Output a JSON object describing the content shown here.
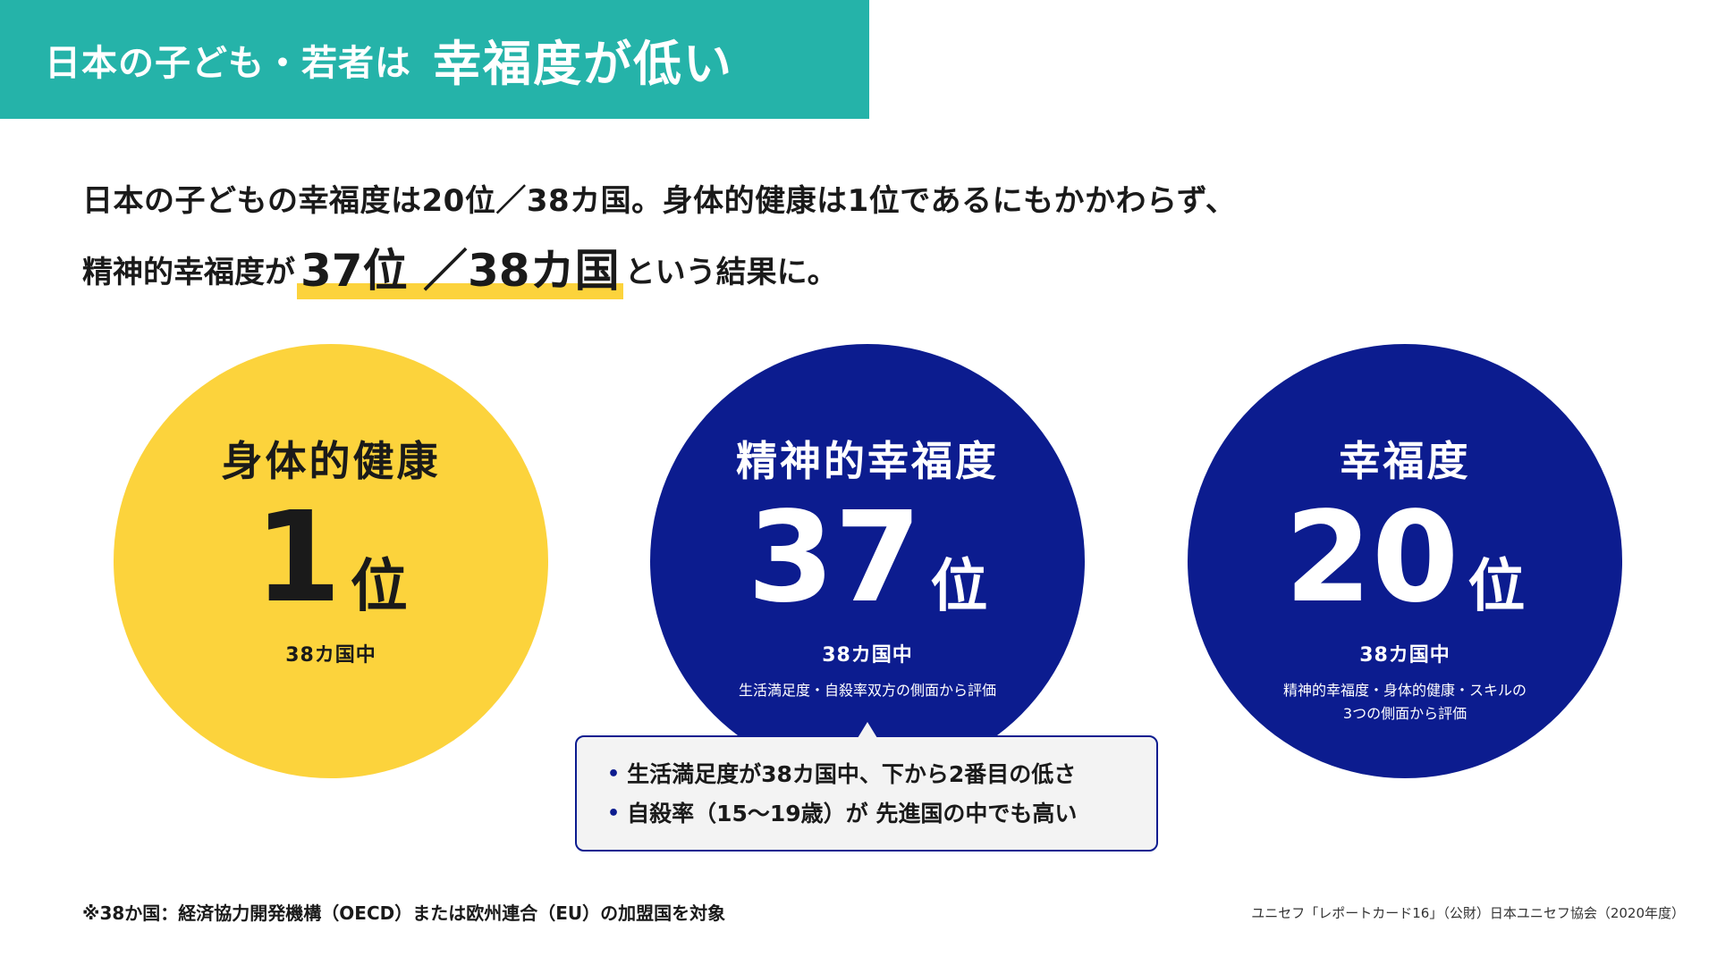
{
  "title": {
    "part1": "日本の子ども・若者は",
    "part2": "幸福度が低い"
  },
  "intro": {
    "line1": "日本の子どもの幸福度は20位／38カ国。身体的健康は1位であるにもかかわらず、",
    "line2_prefix": "精神的幸福度が",
    "line2_highlight": "37位 ／38カ国",
    "line2_suffix": "という結果に。"
  },
  "circles": [
    {
      "heading": "身体的健康",
      "rank": "1",
      "unit": "位",
      "sub": "38カ国中",
      "note1": "",
      "note2": ""
    },
    {
      "heading": "精神的幸福度",
      "rank": "37",
      "unit": "位",
      "sub": "38カ国中",
      "note1": "生活満足度・自殺率双方の側面から評価",
      "note2": ""
    },
    {
      "heading": "幸福度",
      "rank": "20",
      "unit": "位",
      "sub": "38カ国中",
      "note1": "精神的幸福度・身体的健康・スキルの",
      "note2": "3つの側面から評価"
    }
  ],
  "callout": {
    "bullet": "•",
    "items": [
      "生活満足度が38カ国中、下から2番目の低さ",
      "自殺率（15〜19歳）が 先進国の中でも高い"
    ]
  },
  "footnote": "※38か国：経済協力開発機構（OECD）または欧州連合（EU）の加盟国を対象",
  "source": "ユニセフ「レポートカード16」（公財）日本ユニセフ協会（2020年度）",
  "colors": {
    "teal": "#25b3a9",
    "yellow": "#fcd33c",
    "navy": "#0c1c8f"
  }
}
